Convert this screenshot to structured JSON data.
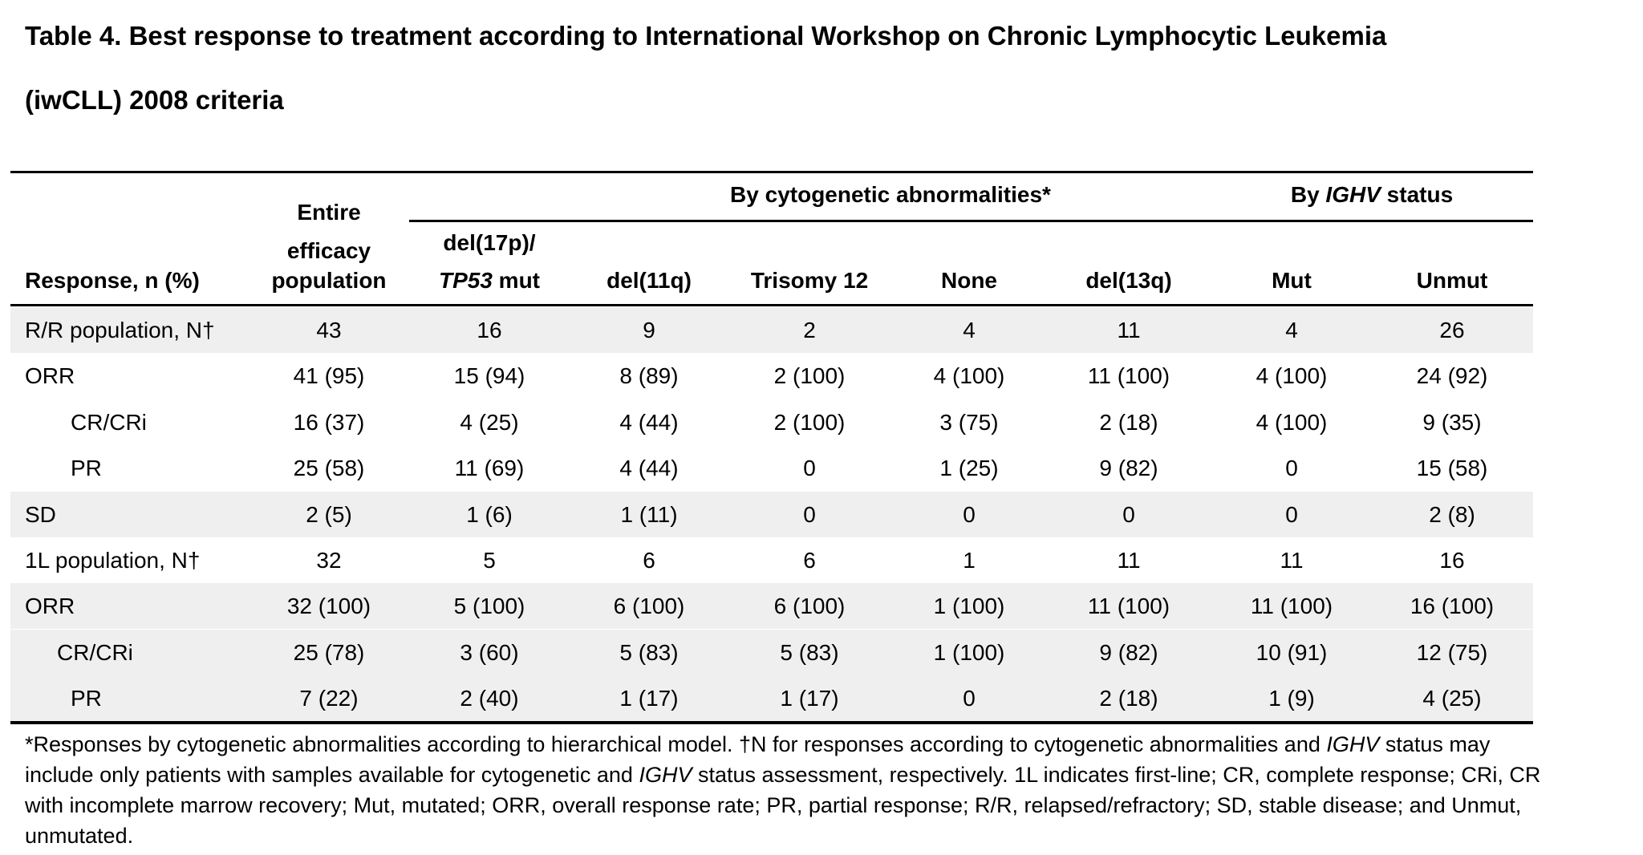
{
  "title": {
    "line1": "Table 4. Best response to treatment according to International Workshop on Chronic Lymphocytic Leukemia",
    "line2": "(iwCLL) 2008 criteria"
  },
  "headers": {
    "response": "Response, n (%)",
    "entire_line1": "Entire",
    "entire_line2": "efficacy",
    "entire_line3": "population",
    "group_cyto": "By cytogenetic abnormalities*",
    "group_ighv_prefix": "By ",
    "group_ighv_italic": "IGHV",
    "group_ighv_suffix": " status",
    "del17p_line1": "del(17p)/",
    "del17p_italic": "TP53",
    "del17p_suffix": " mut",
    "del11q": "del(11q)",
    "trisomy12": "Trisomy 12",
    "none": "None",
    "del13q": "del(13q)",
    "mut": "Mut",
    "unmut": "Unmut"
  },
  "rows": [
    {
      "label": "R/R population, N†",
      "indent": 0,
      "shaded": true,
      "values": [
        "43",
        "16",
        "9",
        "2",
        "4",
        "11",
        "4",
        "26"
      ]
    },
    {
      "label": "ORR",
      "indent": 0,
      "shaded": false,
      "values": [
        "41 (95)",
        "15 (94)",
        "8 (89)",
        "2 (100)",
        "4 (100)",
        "11 (100)",
        "4 (100)",
        "24 (92)"
      ]
    },
    {
      "label": "CR/CRi",
      "indent": 2,
      "shaded": false,
      "values": [
        "16 (37)",
        "4 (25)",
        "4 (44)",
        "2 (100)",
        "3 (75)",
        "2 (18)",
        "4 (100)",
        "9 (35)"
      ]
    },
    {
      "label": "PR",
      "indent": 2,
      "shaded": false,
      "values": [
        "25 (58)",
        "11 (69)",
        "4 (44)",
        "0",
        "1 (25)",
        "9 (82)",
        "0",
        "15 (58)"
      ]
    },
    {
      "label": "SD",
      "indent": 0,
      "shaded": true,
      "values": [
        "2 (5)",
        "1 (6)",
        "1 (11)",
        "0",
        "0",
        "0",
        "0",
        "2 (8)"
      ]
    },
    {
      "label": "1L population, N†",
      "indent": 0,
      "shaded": false,
      "values": [
        "32",
        "5",
        "6",
        "6",
        "1",
        "11",
        "11",
        "16"
      ]
    },
    {
      "label": "ORR",
      "indent": 0,
      "shaded": true,
      "values": [
        "32 (100)",
        "5 (100)",
        "6 (100)",
        "6 (100)",
        "1 (100)",
        "11 (100)",
        "11 (100)",
        "16 (100)"
      ]
    },
    {
      "label": "CR/CRi",
      "indent": 1,
      "shaded": true,
      "values": [
        "25 (78)",
        "3 (60)",
        "5 (83)",
        "5 (83)",
        "1 (100)",
        "9 (82)",
        "10 (91)",
        "12 (75)"
      ]
    },
    {
      "label": "PR",
      "indent": 2,
      "shaded": true,
      "values": [
        "7 (22)",
        "2 (40)",
        "1 (17)",
        "1 (17)",
        "0",
        "2 (18)",
        "1 (9)",
        "4 (25)"
      ]
    }
  ],
  "footnote": {
    "l1_a": "*Responses by cytogenetic abnormalities according to hierarchical model. †N for responses according to cytogenetic abnormalities and ",
    "l1_italic": "IGHV",
    "l1_b": " status may",
    "l2_a": "include only patients with samples available for cytogenetic and ",
    "l2_italic": "IGHV",
    "l2_b": " status assessment, respectively. 1L indicates first-line; CR, complete response; CRi, CR",
    "l3": "with incomplete marrow recovery; Mut, mutated; ORR, overall response rate; PR, partial response; R/R, relapsed/refractory; SD, stable disease; and Unmut,",
    "l4": "unmutated."
  }
}
